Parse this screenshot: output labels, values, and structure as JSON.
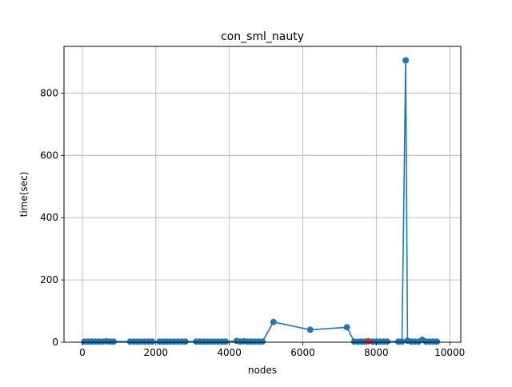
{
  "chart_data": {
    "type": "line",
    "title": "con_sml_nauty",
    "xlabel": "nodes",
    "ylabel": "time(sec)",
    "xlim": [
      -500,
      10300
    ],
    "ylim": [
      0,
      950
    ],
    "x_ticks": [
      0,
      2000,
      4000,
      6000,
      8000,
      10000
    ],
    "y_ticks": [
      0,
      200,
      400,
      600,
      800
    ],
    "grid": true,
    "legend": "none",
    "series": [
      {
        "color": "#1f77b4",
        "marker": "circle",
        "points": [
          [
            50,
            2
          ],
          [
            150,
            2
          ],
          [
            250,
            2
          ],
          [
            350,
            2
          ],
          [
            450,
            2
          ],
          [
            550,
            2
          ],
          [
            650,
            3
          ],
          [
            750,
            2
          ],
          [
            850,
            2
          ],
          [
            1300,
            2
          ],
          [
            1400,
            2
          ],
          [
            1500,
            2
          ],
          [
            1600,
            2
          ],
          [
            1700,
            2
          ],
          [
            1800,
            2
          ],
          [
            1900,
            2
          ],
          [
            2100,
            2
          ],
          [
            2200,
            2
          ],
          [
            2300,
            2
          ],
          [
            2400,
            2
          ],
          [
            2500,
            2
          ],
          [
            2600,
            2
          ],
          [
            2700,
            2
          ],
          [
            2800,
            2
          ],
          [
            3100,
            2
          ],
          [
            3200,
            2
          ],
          [
            3300,
            2
          ],
          [
            3400,
            2
          ],
          [
            3500,
            2
          ],
          [
            3600,
            2
          ],
          [
            3700,
            2
          ],
          [
            3800,
            2
          ],
          [
            3900,
            2
          ],
          [
            4200,
            4
          ],
          [
            4300,
            2
          ],
          [
            4400,
            3
          ],
          [
            4500,
            2
          ],
          [
            4600,
            2
          ],
          [
            4700,
            2
          ],
          [
            4800,
            2
          ],
          [
            4900,
            2
          ],
          [
            5200,
            65
          ],
          [
            6200,
            40
          ],
          [
            7200,
            48
          ],
          [
            7400,
            2
          ],
          [
            7500,
            2
          ],
          [
            7600,
            2
          ],
          [
            7700,
            2
          ],
          [
            7900,
            2
          ],
          [
            8000,
            2
          ],
          [
            8100,
            2
          ],
          [
            8200,
            2
          ],
          [
            8300,
            2
          ],
          [
            8600,
            2
          ],
          [
            8700,
            2
          ],
          [
            8800,
            905
          ],
          [
            8850,
            5
          ],
          [
            8950,
            2
          ],
          [
            9050,
            2
          ],
          [
            9150,
            2
          ],
          [
            9250,
            8
          ],
          [
            9350,
            2
          ],
          [
            9450,
            2
          ],
          [
            9550,
            2
          ],
          [
            9650,
            2
          ]
        ]
      }
    ],
    "highlight": {
      "x": 7780,
      "y": 3,
      "color": "#d62728"
    }
  }
}
